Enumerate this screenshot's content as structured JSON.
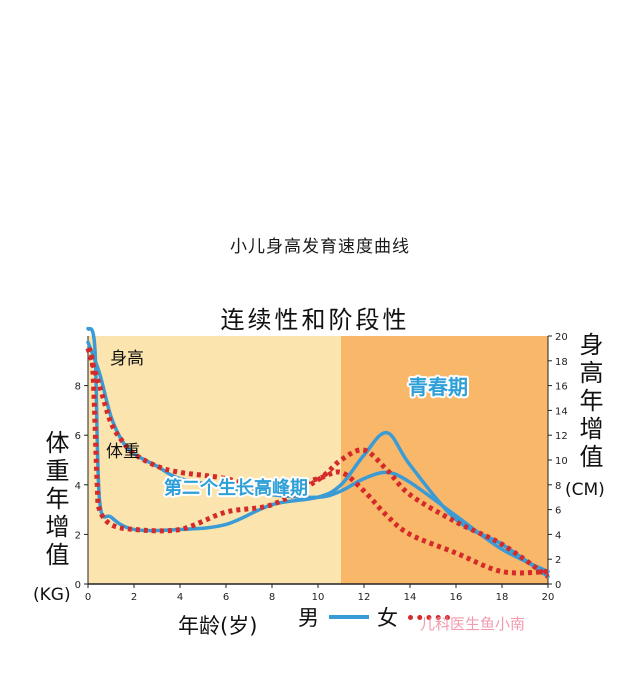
{
  "page": {
    "title": "小儿身高发育速度曲线",
    "watermark": "儿科医生鱼小南"
  },
  "chart_data": {
    "type": "line",
    "title": "连续性和阶段性",
    "xlabel": "年龄(岁)",
    "x_ticks": [
      0,
      2,
      4,
      6,
      8,
      10,
      12,
      14,
      16,
      18,
      20
    ],
    "xlim": [
      0,
      20
    ],
    "left_axis": {
      "label": "体重年增值",
      "unit": "(KG)",
      "ticks": [
        0,
        2,
        4,
        6,
        8
      ],
      "ylim": [
        0,
        10
      ]
    },
    "right_axis": {
      "label": "身高年增值",
      "unit": "(CM)",
      "ticks": [
        0,
        2,
        4,
        6,
        8,
        10,
        12,
        14,
        16,
        18,
        20
      ],
      "ylim": [
        0,
        20
      ]
    },
    "regions": [
      {
        "label": "第二个生长高峰期",
        "x_range": [
          0,
          11
        ],
        "color": "#fce4ae"
      },
      {
        "label": "青春期",
        "x_range": [
          11,
          20
        ],
        "color": "#f9b76a"
      }
    ],
    "annotations": {
      "height": "身高",
      "weight": "体重"
    },
    "legend": {
      "boy": "男",
      "girl": "女"
    },
    "colors": {
      "boy": "#3a9bd5",
      "girl": "#d42a2a"
    },
    "series": [
      {
        "name": "男",
        "measure": "height",
        "axis": "right",
        "x": [
          0,
          0.5,
          1,
          1.5,
          2,
          3,
          4,
          6,
          8,
          10,
          11,
          12,
          13,
          14,
          16,
          18,
          20
        ],
        "y": [
          19.5,
          17,
          13.5,
          11.5,
          10.5,
          9.5,
          8.5,
          7.8,
          7.2,
          7.0,
          7.5,
          8.5,
          9.0,
          8.2,
          5.5,
          2.8,
          1.0
        ]
      },
      {
        "name": "女",
        "measure": "height",
        "axis": "right",
        "x": [
          0,
          0.5,
          1,
          1.5,
          2,
          3,
          4,
          6,
          8,
          10,
          11,
          12,
          13,
          14,
          16,
          18,
          20
        ],
        "y": [
          19.0,
          16,
          13,
          11.5,
          10.5,
          9.5,
          9.0,
          8.5,
          7.5,
          8.5,
          9.0,
          7.5,
          5.5,
          4.0,
          2.5,
          1.0,
          1.0
        ]
      },
      {
        "name": "男",
        "measure": "weight",
        "axis": "left",
        "x": [
          0,
          0.3,
          0.5,
          1,
          2,
          4,
          6,
          8,
          10,
          11,
          12,
          13,
          14,
          16,
          18,
          20
        ],
        "y": [
          10.3,
          9.5,
          3.4,
          2.7,
          2.2,
          2.2,
          2.4,
          3.2,
          3.5,
          4.0,
          5.2,
          6.1,
          4.8,
          2.6,
          1.6,
          0.3
        ]
      },
      {
        "name": "女",
        "measure": "weight",
        "axis": "left",
        "x": [
          0,
          0.2,
          0.4,
          0.5,
          1,
          2,
          4,
          6,
          8,
          10,
          11,
          12,
          13,
          14,
          16,
          18,
          20
        ],
        "y": [
          9.5,
          8.8,
          4.0,
          3.0,
          2.4,
          2.2,
          2.2,
          2.9,
          3.2,
          4.2,
          5.0,
          5.4,
          4.6,
          3.6,
          2.5,
          1.6,
          0.3
        ]
      }
    ]
  }
}
